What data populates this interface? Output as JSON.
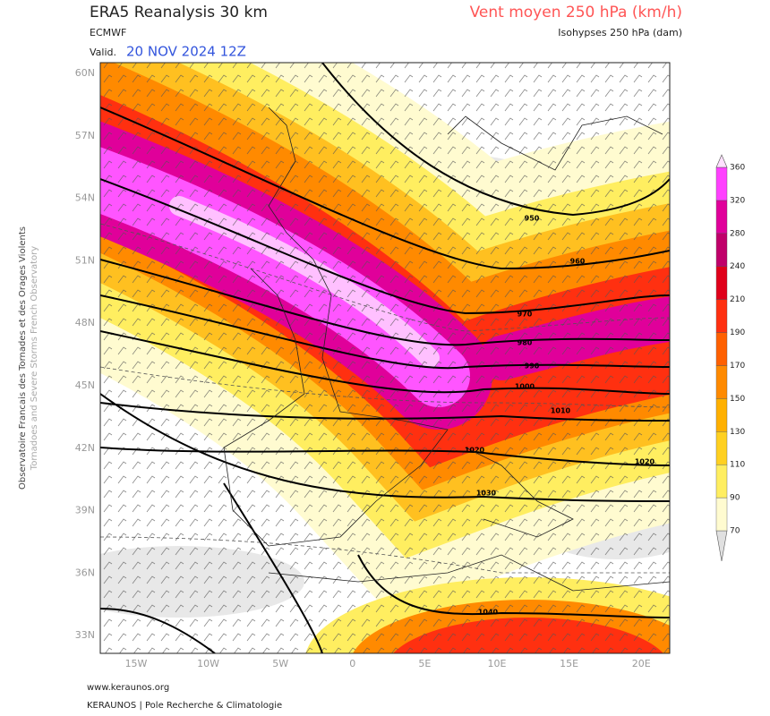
{
  "header": {
    "title": "ERA5 Reanalysis 30 km",
    "source": "ECMWF",
    "valid_label": "Valid.",
    "valid_date": "20 NOV 2024 12Z",
    "field": "Vent moyen 250 hPa (km/h)",
    "contours": "Isohypses 250 hPa (dam)"
  },
  "map": {
    "lat_labels": [
      "60N",
      "57N",
      "54N",
      "51N",
      "48N",
      "45N",
      "42N",
      "39N",
      "36N",
      "33N"
    ],
    "lon_labels": [
      "15W",
      "10W",
      "5W",
      "0",
      "5E",
      "10E",
      "15E",
      "20E"
    ],
    "contour_labels": [
      "950",
      "960",
      "970",
      "980",
      "990",
      "1000",
      "1010",
      "1020",
      "1020",
      "1030",
      "1040"
    ]
  },
  "colorbar": {
    "ticks": [
      70,
      90,
      110,
      130,
      150,
      170,
      190,
      210,
      240,
      280,
      320,
      360
    ]
  },
  "side": {
    "line1": "Observatoire Francais des Tornades et des Orages Violents",
    "line2": "Tornadoes and Severe Storms French Observatory"
  },
  "footer": {
    "url": "www.keraunos.org",
    "org": "KERAUNOS | Pole Recherche & Climatologie"
  }
}
